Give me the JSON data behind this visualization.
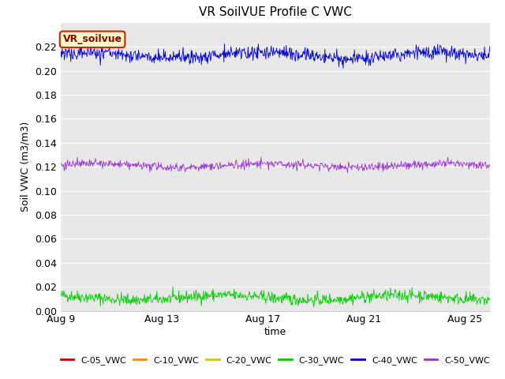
{
  "title": "VR SoilVUE Profile C VWC",
  "xlabel": "time",
  "ylabel": "Soil VWC (m3/m3)",
  "annotation_text": "VR_soilvue",
  "annotation_facecolor": "#ffffcc",
  "annotation_edgecolor": "#cc2200",
  "annotation_textcolor": "#8b0000",
  "fig_bg_color": "#ffffff",
  "plot_bg_color": "#e8e8e8",
  "ylim": [
    0.0,
    0.24
  ],
  "yticks": [
    0.0,
    0.02,
    0.04,
    0.06,
    0.08,
    0.1,
    0.12,
    0.14,
    0.16,
    0.18,
    0.2,
    0.22
  ],
  "xstart_days": 0,
  "xend_days": 17,
  "n_points": 800,
  "series": [
    {
      "label": "C-05_VWC",
      "color": "#cc0000",
      "base": 0.0,
      "std": 0.0,
      "active": false
    },
    {
      "label": "C-10_VWC",
      "color": "#ff8800",
      "base": 0.0,
      "std": 0.0,
      "active": false
    },
    {
      "label": "C-20_VWC",
      "color": "#cccc00",
      "base": 0.0,
      "std": 0.0,
      "active": true,
      "flat": true
    },
    {
      "label": "C-30_VWC",
      "color": "#00cc00",
      "base": 0.011,
      "std": 0.0025,
      "active": true,
      "flat": false
    },
    {
      "label": "C-40_VWC",
      "color": "#0000cc",
      "base": 0.213,
      "std": 0.003,
      "active": true,
      "flat": false
    },
    {
      "label": "C-50_VWC",
      "color": "#9933cc",
      "base": 0.121,
      "std": 0.0018,
      "active": true,
      "flat": false
    }
  ],
  "xtick_labels": [
    "Aug 9",
    "Aug 13",
    "Aug 17",
    "Aug 21",
    "Aug 25"
  ],
  "xtick_positions": [
    0,
    4,
    8,
    12,
    16
  ],
  "grid_color": "#ffffff",
  "linewidth": 0.6
}
